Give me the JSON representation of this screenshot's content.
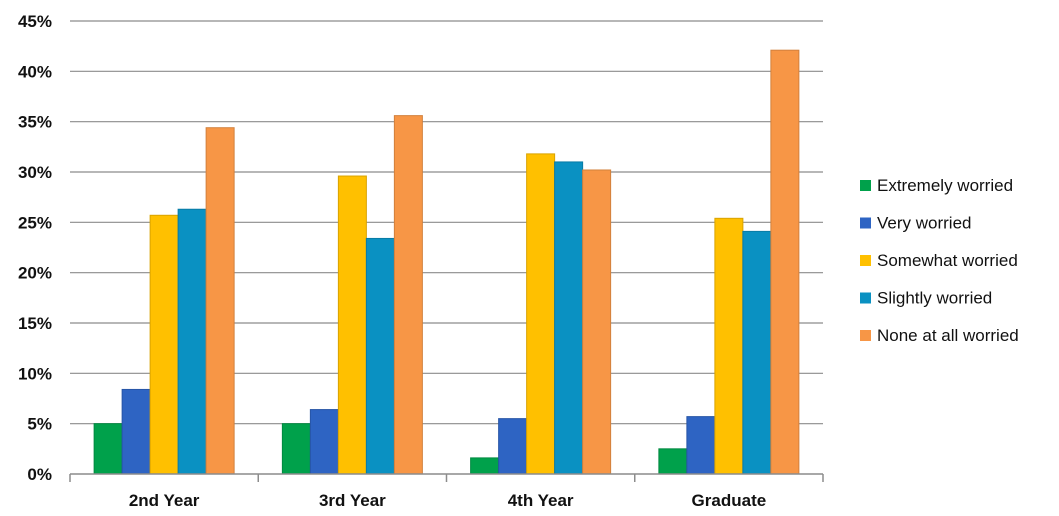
{
  "chart_data": {
    "type": "bar",
    "title": "",
    "xlabel": "",
    "ylabel": "",
    "categories": [
      "2nd Year",
      "3rd Year",
      "4th Year",
      "Graduate"
    ],
    "ylim": [
      0,
      45
    ],
    "yticks": [
      0,
      5,
      10,
      15,
      20,
      25,
      30,
      35,
      40,
      45
    ],
    "ytick_labels": [
      "0%",
      "5%",
      "10%",
      "15%",
      "20%",
      "25%",
      "30%",
      "35%",
      "40%",
      "45%"
    ],
    "grid": true,
    "legend_position": "right",
    "series": [
      {
        "name": "Extremely worried",
        "color": "#00A14B",
        "values": [
          5.0,
          5.0,
          1.6,
          2.5
        ]
      },
      {
        "name": "Very worried",
        "color": "#2E64C3",
        "values": [
          8.4,
          6.4,
          5.5,
          5.7
        ]
      },
      {
        "name": "Somewhat worried",
        "color": "#FFC000",
        "values": [
          25.7,
          29.6,
          31.8,
          25.4
        ]
      },
      {
        "name": "Slightly worried",
        "color": "#0A91C2",
        "values": [
          26.3,
          23.4,
          31.0,
          24.1
        ]
      },
      {
        "name": "None at all worried",
        "color": "#F79646",
        "values": [
          34.4,
          35.6,
          30.2,
          42.1
        ]
      }
    ]
  }
}
